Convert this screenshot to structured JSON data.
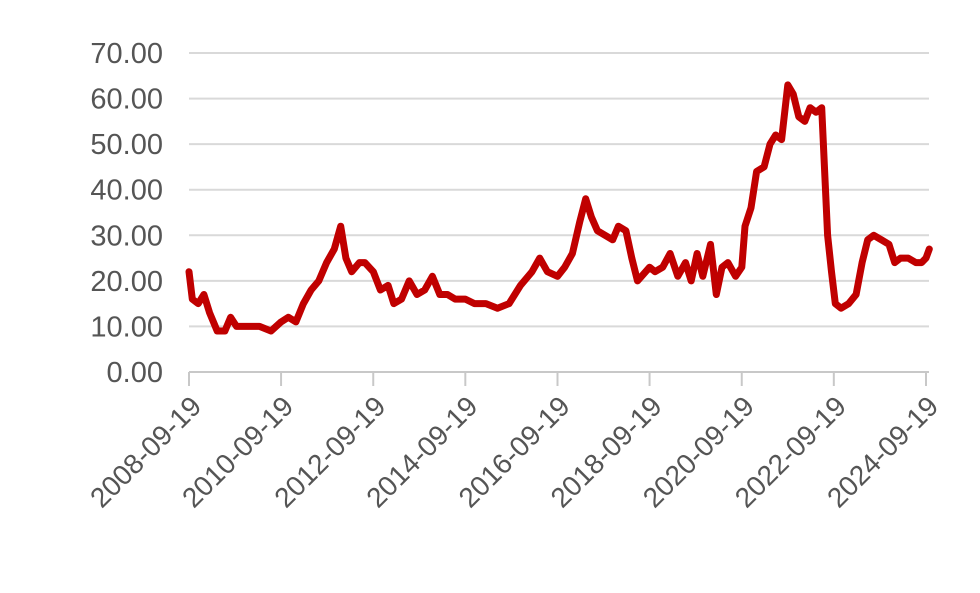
{
  "chart_data": {
    "type": "line",
    "title": "",
    "xlabel": "",
    "ylabel": "",
    "ylim": [
      0,
      70
    ],
    "grid": true,
    "legend": "none",
    "y_ticks": [
      "0.00",
      "10.00",
      "20.00",
      "30.00",
      "40.00",
      "50.00",
      "60.00",
      "70.00"
    ],
    "x_ticks": [
      "2008-09-19",
      "2010-09-19",
      "2012-09-19",
      "2014-09-19",
      "2016-09-19",
      "2018-09-19",
      "2020-09-19",
      "2022-09-19",
      "2024-09-19"
    ],
    "colors": {
      "series": "#c00000",
      "grid": "#d9d9d9",
      "tick_text": "#555555"
    },
    "series": [
      {
        "values": [
          [
            "2008-09-19",
            22
          ],
          [
            "2008-10-15",
            16
          ],
          [
            "2008-12-01",
            15
          ],
          [
            "2009-01-15",
            17
          ],
          [
            "2009-03-01",
            13
          ],
          [
            "2009-05-01",
            9
          ],
          [
            "2009-07-01",
            9
          ],
          [
            "2009-08-15",
            12
          ],
          [
            "2009-10-01",
            10
          ],
          [
            "2010-01-01",
            10
          ],
          [
            "2010-04-01",
            10
          ],
          [
            "2010-07-01",
            9
          ],
          [
            "2010-09-19",
            11
          ],
          [
            "2010-11-15",
            12
          ],
          [
            "2011-01-15",
            11
          ],
          [
            "2011-03-15",
            15
          ],
          [
            "2011-05-15",
            18
          ],
          [
            "2011-07-15",
            20
          ],
          [
            "2011-09-15",
            24
          ],
          [
            "2011-11-15",
            27
          ],
          [
            "2012-01-05",
            32
          ],
          [
            "2012-02-15",
            25
          ],
          [
            "2012-04-01",
            22
          ],
          [
            "2012-06-01",
            24
          ],
          [
            "2012-07-15",
            24
          ],
          [
            "2012-09-19",
            22
          ],
          [
            "2012-11-15",
            18
          ],
          [
            "2013-01-15",
            19
          ],
          [
            "2013-03-01",
            15
          ],
          [
            "2013-05-01",
            16
          ],
          [
            "2013-07-01",
            20
          ],
          [
            "2013-09-01",
            17
          ],
          [
            "2013-11-01",
            18
          ],
          [
            "2014-01-01",
            21
          ],
          [
            "2014-03-01",
            17
          ],
          [
            "2014-05-01",
            17
          ],
          [
            "2014-07-01",
            16
          ],
          [
            "2014-09-19",
            16
          ],
          [
            "2014-12-01",
            15
          ],
          [
            "2015-03-01",
            15
          ],
          [
            "2015-06-01",
            14
          ],
          [
            "2015-09-01",
            15
          ],
          [
            "2015-12-01",
            19
          ],
          [
            "2016-03-01",
            22
          ],
          [
            "2016-05-01",
            25
          ],
          [
            "2016-07-01",
            22
          ],
          [
            "2016-09-19",
            21
          ],
          [
            "2016-11-15",
            23
          ],
          [
            "2017-01-15",
            26
          ],
          [
            "2017-03-15",
            33
          ],
          [
            "2017-05-01",
            38
          ],
          [
            "2017-06-15",
            34
          ],
          [
            "2017-08-01",
            31
          ],
          [
            "2017-10-01",
            30
          ],
          [
            "2017-12-01",
            29
          ],
          [
            "2018-01-15",
            32
          ],
          [
            "2018-03-15",
            31
          ],
          [
            "2018-05-01",
            25
          ],
          [
            "2018-06-15",
            20
          ],
          [
            "2018-09-19",
            23
          ],
          [
            "2018-11-01",
            22
          ],
          [
            "2019-01-01",
            23
          ],
          [
            "2019-03-01",
            26
          ],
          [
            "2019-05-01",
            21
          ],
          [
            "2019-07-01",
            24
          ],
          [
            "2019-08-15",
            20
          ],
          [
            "2019-10-01",
            26
          ],
          [
            "2019-11-15",
            21
          ],
          [
            "2020-01-15",
            28
          ],
          [
            "2020-03-01",
            17
          ],
          [
            "2020-04-15",
            23
          ],
          [
            "2020-06-01",
            24
          ],
          [
            "2020-08-01",
            21
          ],
          [
            "2020-09-19",
            23
          ],
          [
            "2020-10-15",
            32
          ],
          [
            "2020-12-01",
            36
          ],
          [
            "2021-01-15",
            44
          ],
          [
            "2021-03-15",
            45
          ],
          [
            "2021-05-01",
            50
          ],
          [
            "2021-06-15",
            52
          ],
          [
            "2021-08-01",
            51
          ],
          [
            "2021-09-19",
            63
          ],
          [
            "2021-11-01",
            61
          ],
          [
            "2021-12-15",
            56
          ],
          [
            "2022-02-01",
            55
          ],
          [
            "2022-03-15",
            58
          ],
          [
            "2022-05-01",
            57
          ],
          [
            "2022-06-15",
            58
          ],
          [
            "2022-08-01",
            30
          ],
          [
            "2022-09-01",
            22
          ],
          [
            "2022-10-01",
            15
          ],
          [
            "2022-11-15",
            14
          ],
          [
            "2023-01-15",
            15
          ],
          [
            "2023-03-15",
            17
          ],
          [
            "2023-05-01",
            24
          ],
          [
            "2023-06-15",
            29
          ],
          [
            "2023-08-01",
            30
          ],
          [
            "2023-10-01",
            29
          ],
          [
            "2023-12-01",
            28
          ],
          [
            "2024-01-15",
            24
          ],
          [
            "2024-03-01",
            25
          ],
          [
            "2024-05-01",
            25
          ],
          [
            "2024-07-01",
            24
          ],
          [
            "2024-08-15",
            24
          ],
          [
            "2024-09-19",
            25
          ],
          [
            "2024-10-15",
            27
          ]
        ]
      }
    ]
  }
}
